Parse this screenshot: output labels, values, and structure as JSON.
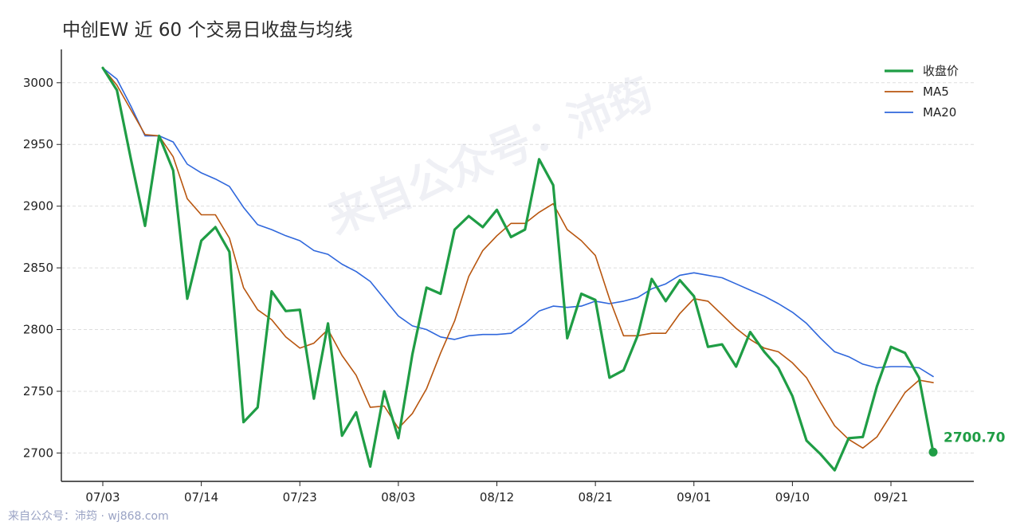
{
  "title": "中创EW 近 60 个交易日收盘与均线",
  "watermark": "来自公众号：沛筠",
  "footer": "来自公众号：沛筠 · wj868.com",
  "colors": {
    "close": "#1f9d45",
    "ma5": "#b8560f",
    "ma20": "#2f67dc",
    "grid": "#dddddd",
    "axis": "#222222"
  },
  "chart_data": {
    "type": "line",
    "title": "中创EW 近 60 个交易日收盘与均线",
    "xlabel": "",
    "ylabel": "",
    "ylim": [
      2677,
      3027
    ],
    "y_ticks": [
      2700,
      2750,
      2800,
      2850,
      2900,
      2950,
      3000
    ],
    "x_tick_labels": [
      "07/03",
      "07/14",
      "07/23",
      "08/03",
      "08/12",
      "08/21",
      "09/01",
      "09/10",
      "09/21"
    ],
    "x_tick_indices": [
      0,
      7,
      14,
      21,
      28,
      35,
      42,
      49,
      56
    ],
    "grid": true,
    "legend_position": "top-right",
    "last_value_label": "2700.70",
    "series": [
      {
        "name": "收盘价",
        "values": [
          3012,
          2994,
          2938,
          2884,
          2957,
          2929,
          2825,
          2872,
          2883,
          2863,
          2725,
          2737,
          2831,
          2815,
          2816,
          2744,
          2805,
          2714,
          2733,
          2689,
          2750,
          2712,
          2780,
          2834,
          2829,
          2881,
          2892,
          2883,
          2897,
          2875,
          2881,
          2938,
          2917,
          2793,
          2829,
          2824,
          2761,
          2767,
          2795,
          2841,
          2823,
          2840,
          2827,
          2786,
          2788,
          2770,
          2798,
          2782,
          2769,
          2746,
          2710,
          2699,
          2686,
          2712,
          2713,
          2754,
          2786,
          2781,
          2761,
          2700.7
        ]
      },
      {
        "name": "MA5",
        "values": [
          3012,
          2998,
          2978,
          2958,
          2957,
          2940,
          2906,
          2893,
          2893,
          2874,
          2834,
          2816,
          2808,
          2794,
          2785,
          2789,
          2800,
          2779,
          2763,
          2737,
          2738,
          2720,
          2732,
          2752,
          2781,
          2807,
          2843,
          2864,
          2876,
          2886,
          2886,
          2895,
          2902,
          2881,
          2872,
          2860,
          2825,
          2795,
          2795,
          2797,
          2797,
          2813,
          2825,
          2823,
          2812,
          2801,
          2792,
          2785,
          2782,
          2773,
          2761,
          2741,
          2722,
          2711,
          2704,
          2713,
          2731,
          2749,
          2759,
          2757
        ]
      },
      {
        "name": "MA20",
        "values": [
          3012,
          3003,
          2981,
          2957,
          2957,
          2952,
          2934,
          2927,
          2922,
          2916,
          2899,
          2885,
          2881,
          2876,
          2872,
          2864,
          2861,
          2853,
          2847,
          2839,
          2825,
          2811,
          2803,
          2800,
          2794,
          2792,
          2795,
          2796,
          2796,
          2797,
          2805,
          2815,
          2819,
          2818,
          2819,
          2823,
          2821,
          2823,
          2826,
          2833,
          2837,
          2844,
          2846,
          2844,
          2842,
          2837,
          2832,
          2827,
          2821,
          2814,
          2805,
          2793,
          2782,
          2778,
          2772,
          2769,
          2770,
          2770,
          2769,
          2762
        ]
      }
    ]
  }
}
